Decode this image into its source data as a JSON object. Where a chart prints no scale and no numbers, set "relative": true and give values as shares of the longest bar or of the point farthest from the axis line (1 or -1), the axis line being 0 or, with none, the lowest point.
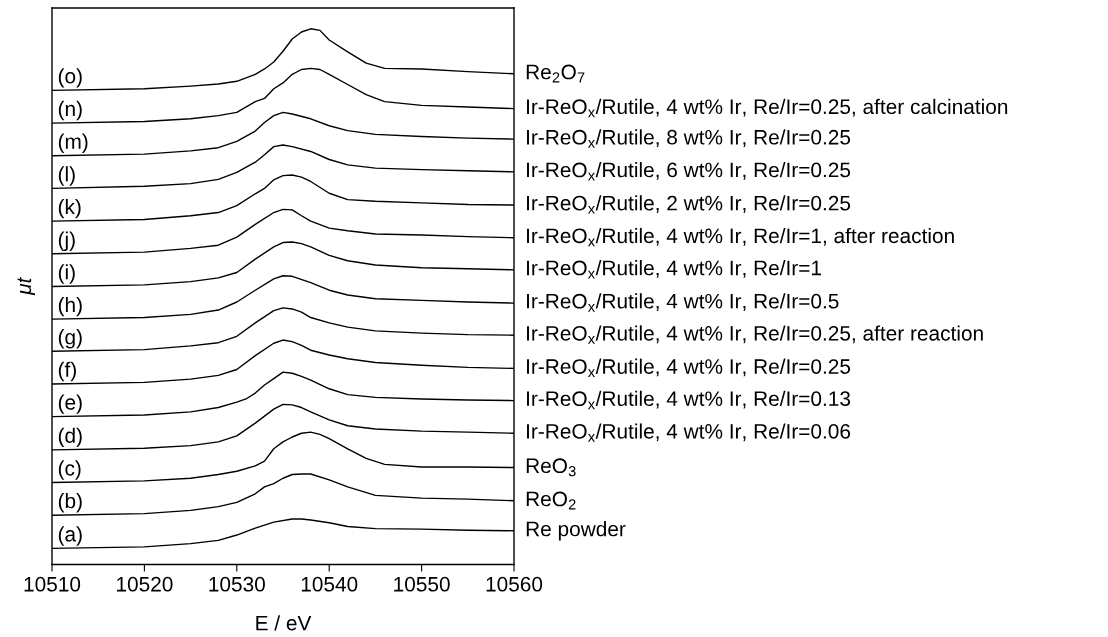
{
  "chart_data": {
    "type": "line",
    "relative": true,
    "xlabel": "E / eV",
    "ylabel": "μt",
    "xlim": [
      10510,
      10560
    ],
    "xticks": [
      10510,
      10520,
      10530,
      10540,
      10550,
      10560
    ],
    "grid": false,
    "legend": false,
    "tick_labels": "x",
    "marker": "none",
    "line_style": "solid",
    "series": [
      {
        "name": "Re powder",
        "color": "#000000",
        "x": [
          10510,
          10520,
          10525,
          10528,
          10530,
          10532,
          10534,
          10536,
          10537,
          10538,
          10540,
          10542,
          10545,
          10550,
          10555,
          10560
        ],
        "values": [
          0.03,
          0.033,
          0.039,
          0.045,
          0.055,
          0.068,
          0.079,
          0.085,
          0.085,
          0.083,
          0.078,
          0.071,
          0.067,
          0.066,
          0.064,
          0.063
        ]
      },
      {
        "name": "ReO$_{2}$",
        "color": "#000000",
        "x": [
          10510,
          10520,
          10525,
          10528,
          10530,
          10532,
          10533,
          10534,
          10535,
          10536,
          10537,
          10538,
          10540,
          10542,
          10545,
          10550,
          10555,
          10560
        ],
        "values": [
          0.092,
          0.095,
          0.101,
          0.108,
          0.116,
          0.132,
          0.145,
          0.151,
          0.161,
          0.168,
          0.169,
          0.169,
          0.158,
          0.145,
          0.129,
          0.124,
          0.122,
          0.119
        ]
      },
      {
        "name": "ReO$_{3}$",
        "color": "#000000",
        "x": [
          10510,
          10520,
          10525,
          10528,
          10530,
          10532,
          10533,
          10534,
          10535,
          10536,
          10537,
          10538,
          10539,
          10540,
          10542,
          10544,
          10546,
          10550,
          10555,
          10560
        ],
        "values": [
          0.153,
          0.156,
          0.161,
          0.168,
          0.174,
          0.184,
          0.193,
          0.216,
          0.229,
          0.238,
          0.245,
          0.247,
          0.243,
          0.235,
          0.216,
          0.198,
          0.187,
          0.182,
          0.182,
          0.181
        ]
      },
      {
        "name": "Ir-ReO$_{x}$/Rutile, 4 wt% Ir, Re/Ir=0.06",
        "color": "#000000",
        "x": [
          10510,
          10520,
          10525,
          10528,
          10530,
          10532,
          10533,
          10534,
          10535,
          10536,
          10537,
          10538,
          10540,
          10542,
          10545,
          10550,
          10555,
          10560
        ],
        "values": [
          0.214,
          0.217,
          0.222,
          0.229,
          0.24,
          0.264,
          0.277,
          0.29,
          0.299,
          0.298,
          0.293,
          0.285,
          0.27,
          0.259,
          0.253,
          0.249,
          0.247,
          0.245
        ]
      },
      {
        "name": "Ir-ReO$_{x}$/Rutile, 4 wt% Ir, Re/Ir=0.13",
        "color": "#000000",
        "x": [
          10510,
          10520,
          10525,
          10528,
          10530,
          10531,
          10532,
          10533,
          10534,
          10535,
          10536,
          10537,
          10538,
          10540,
          10542,
          10545,
          10550,
          10555,
          10560
        ],
        "values": [
          0.276,
          0.279,
          0.285,
          0.293,
          0.303,
          0.309,
          0.32,
          0.335,
          0.347,
          0.359,
          0.357,
          0.351,
          0.344,
          0.328,
          0.317,
          0.312,
          0.309,
          0.307,
          0.306
        ]
      },
      {
        "name": "Ir-ReO$_{x}$/Rutile, 4 wt% Ir, Re/Ir=0.25",
        "color": "#000000",
        "x": [
          10510,
          10520,
          10525,
          10528,
          10530,
          10532,
          10534,
          10535,
          10536,
          10537,
          10538,
          10540,
          10542,
          10545,
          10550,
          10555,
          10560
        ],
        "values": [
          0.337,
          0.34,
          0.346,
          0.353,
          0.364,
          0.39,
          0.413,
          0.419,
          0.416,
          0.409,
          0.4,
          0.391,
          0.384,
          0.377,
          0.372,
          0.368,
          0.366
        ]
      },
      {
        "name": "Ir-ReO$_{x}$/Rutile, 4 wt% Ir, Re/Ir=0.25, after reaction",
        "color": "#000000",
        "x": [
          10510,
          10520,
          10525,
          10528,
          10530,
          10532,
          10534,
          10535,
          10536,
          10537,
          10538,
          10540,
          10542,
          10545,
          10550,
          10555,
          10560
        ],
        "values": [
          0.398,
          0.401,
          0.408,
          0.414,
          0.426,
          0.451,
          0.474,
          0.479,
          0.477,
          0.471,
          0.461,
          0.451,
          0.443,
          0.436,
          0.432,
          0.429,
          0.428
        ]
      },
      {
        "name": "Ir-ReO$_{x}$/Rutile, 4 wt% Ir, Re/Ir=0.5",
        "color": "#000000",
        "x": [
          10510,
          10520,
          10525,
          10528,
          10530,
          10532,
          10534,
          10535,
          10536,
          10538,
          10540,
          10542,
          10545,
          10550,
          10555,
          10560
        ],
        "values": [
          0.458,
          0.461,
          0.467,
          0.475,
          0.49,
          0.512,
          0.533,
          0.539,
          0.538,
          0.526,
          0.512,
          0.503,
          0.496,
          0.493,
          0.49,
          0.488
        ]
      },
      {
        "name": "Ir-ReO$_{x}$/Rutile, 4 wt% Ir, Re/Ir=1",
        "color": "#000000",
        "x": [
          10510,
          10520,
          10525,
          10528,
          10530,
          10532,
          10534,
          10535,
          10536,
          10537,
          10538,
          10540,
          10542,
          10545,
          10550,
          10555,
          10560
        ],
        "values": [
          0.519,
          0.522,
          0.528,
          0.535,
          0.545,
          0.57,
          0.593,
          0.601,
          0.602,
          0.599,
          0.593,
          0.577,
          0.567,
          0.559,
          0.554,
          0.552,
          0.55
        ]
      },
      {
        "name": "Ir-ReO$_{x}$/Rutile, 4 wt% Ir, Re/Ir=1, after reaction",
        "color": "#000000",
        "x": [
          10510,
          10520,
          10525,
          10528,
          10530,
          10532,
          10534,
          10535,
          10536,
          10537,
          10538,
          10540,
          10542,
          10545,
          10550,
          10555,
          10560
        ],
        "values": [
          0.58,
          0.583,
          0.59,
          0.596,
          0.611,
          0.635,
          0.657,
          0.663,
          0.662,
          0.651,
          0.641,
          0.628,
          0.623,
          0.617,
          0.615,
          0.612,
          0.61
        ]
      },
      {
        "name": "Ir-ReO$_{x}$/Rutile, 2 wt% Ir, Re/Ir=0.25",
        "color": "#000000",
        "x": [
          10510,
          10520,
          10525,
          10528,
          10530,
          10532,
          10533,
          10534,
          10535,
          10536,
          10537,
          10538,
          10540,
          10542,
          10545,
          10550,
          10555,
          10560
        ],
        "values": [
          0.641,
          0.644,
          0.651,
          0.657,
          0.67,
          0.692,
          0.702,
          0.718,
          0.726,
          0.727,
          0.723,
          0.715,
          0.693,
          0.681,
          0.678,
          0.675,
          0.672,
          0.671
        ]
      },
      {
        "name": "Ir-ReO$_{x}$/Rutile, 6 wt% Ir, Re/Ir=0.25",
        "color": "#000000",
        "x": [
          10510,
          10520,
          10525,
          10528,
          10530,
          10532,
          10533,
          10534,
          10535,
          10536,
          10538,
          10540,
          10542,
          10545,
          10550,
          10555,
          10560
        ],
        "values": [
          0.702,
          0.706,
          0.711,
          0.719,
          0.732,
          0.751,
          0.765,
          0.78,
          0.783,
          0.78,
          0.771,
          0.756,
          0.746,
          0.74,
          0.737,
          0.735,
          0.733
        ]
      },
      {
        "name": "Ir-ReO$_{x}$/Rutile, 8 wt% Ir, Re/Ir=0.25",
        "color": "#000000",
        "x": [
          10510,
          10520,
          10525,
          10528,
          10530,
          10532,
          10533,
          10534,
          10535,
          10536,
          10538,
          10540,
          10542,
          10545,
          10550,
          10555,
          10560
        ],
        "values": [
          0.763,
          0.766,
          0.772,
          0.778,
          0.79,
          0.809,
          0.825,
          0.838,
          0.844,
          0.841,
          0.832,
          0.819,
          0.81,
          0.803,
          0.799,
          0.796,
          0.794
        ]
      },
      {
        "name": "Ir-ReO$_{x}$/Rutile, 4 wt% Ir, Re/Ir=0.25, after calcination",
        "color": "#000000",
        "x": [
          10510,
          10520,
          10525,
          10528,
          10530,
          10532,
          10533,
          10534,
          10535,
          10536,
          10537,
          10538,
          10539,
          10540,
          10542,
          10544,
          10546,
          10550,
          10555,
          10560
        ],
        "values": [
          0.824,
          0.827,
          0.832,
          0.838,
          0.844,
          0.864,
          0.87,
          0.888,
          0.899,
          0.915,
          0.924,
          0.926,
          0.924,
          0.915,
          0.896,
          0.877,
          0.864,
          0.857,
          0.854,
          0.851
        ]
      },
      {
        "name": "Re$_{2}$O$_{7}$",
        "color": "#000000",
        "x": [
          10510,
          10520,
          10525,
          10528,
          10530,
          10532,
          10533,
          10534,
          10535,
          10536,
          10537,
          10538,
          10539,
          10540,
          10542,
          10544,
          10546,
          10550,
          10555,
          10560
        ],
        "values": [
          0.885,
          0.888,
          0.893,
          0.897,
          0.902,
          0.915,
          0.925,
          0.938,
          0.958,
          0.981,
          0.994,
          1.0,
          0.997,
          0.979,
          0.957,
          0.936,
          0.926,
          0.925,
          0.92,
          0.916
        ]
      }
    ],
    "annotations": [
      "(a)",
      "(b)",
      "(c)",
      "(d)",
      "(e)",
      "(f)",
      "(g)",
      "(h)",
      "(i)",
      "(j)",
      "(k)",
      "(l)",
      "(m)",
      "(n)",
      "(o)"
    ]
  }
}
